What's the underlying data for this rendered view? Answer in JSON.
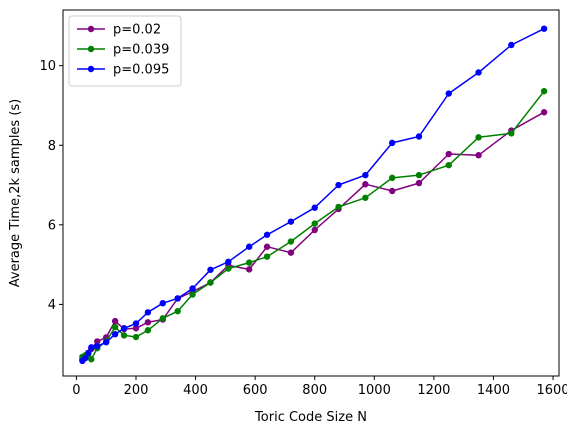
{
  "chart_data": {
    "type": "line",
    "xlabel": "Toric Code Size N",
    "ylabel": "Average Time,2k samples (s)",
    "xlim": [
      -45,
      1620
    ],
    "ylim": [
      2.2,
      11.4
    ],
    "xticks": [
      0,
      200,
      400,
      600,
      800,
      1000,
      1200,
      1400,
      1600
    ],
    "yticks": [
      4,
      6,
      8,
      10
    ],
    "grid": false,
    "legend_position": "top-left",
    "series": [
      {
        "name": "p=0.02",
        "color": "#800080",
        "x": [
          20,
          30,
          40,
          50,
          70,
          100,
          130,
          160,
          200,
          240,
          290,
          340,
          390,
          450,
          510,
          580,
          640,
          720,
          800,
          880,
          970,
          1060,
          1150,
          1250,
          1350,
          1460,
          1570
        ],
        "y": [
          2.62,
          2.68,
          2.78,
          2.88,
          3.07,
          3.17,
          3.58,
          3.38,
          3.4,
          3.55,
          3.62,
          4.15,
          4.32,
          4.55,
          4.98,
          4.88,
          5.45,
          5.3,
          5.87,
          6.4,
          7.02,
          6.85,
          7.05,
          7.78,
          7.75,
          8.37,
          8.83
        ]
      },
      {
        "name": "p=0.039",
        "color": "#008000",
        "x": [
          20,
          30,
          40,
          50,
          70,
          100,
          130,
          160,
          200,
          240,
          290,
          340,
          390,
          450,
          510,
          580,
          640,
          720,
          800,
          880,
          970,
          1060,
          1150,
          1250,
          1350,
          1460,
          1570
        ],
        "y": [
          2.68,
          2.72,
          2.75,
          2.62,
          2.9,
          3.07,
          3.43,
          3.22,
          3.18,
          3.35,
          3.65,
          3.83,
          4.25,
          4.55,
          4.9,
          5.05,
          5.2,
          5.58,
          6.03,
          6.45,
          6.68,
          7.18,
          7.25,
          7.5,
          8.2,
          8.3,
          9.36
        ]
      },
      {
        "name": "p=0.095",
        "color": "#0000ff",
        "x": [
          20,
          30,
          40,
          50,
          70,
          100,
          130,
          160,
          200,
          240,
          290,
          340,
          390,
          450,
          510,
          580,
          640,
          720,
          800,
          880,
          970,
          1060,
          1150,
          1250,
          1350,
          1460,
          1570
        ],
        "y": [
          2.58,
          2.65,
          2.78,
          2.92,
          2.95,
          3.05,
          3.25,
          3.4,
          3.52,
          3.8,
          4.03,
          4.15,
          4.4,
          4.87,
          5.07,
          5.45,
          5.75,
          6.08,
          6.43,
          7.0,
          7.25,
          8.06,
          8.22,
          9.3,
          9.83,
          10.52,
          10.93
        ]
      }
    ]
  }
}
